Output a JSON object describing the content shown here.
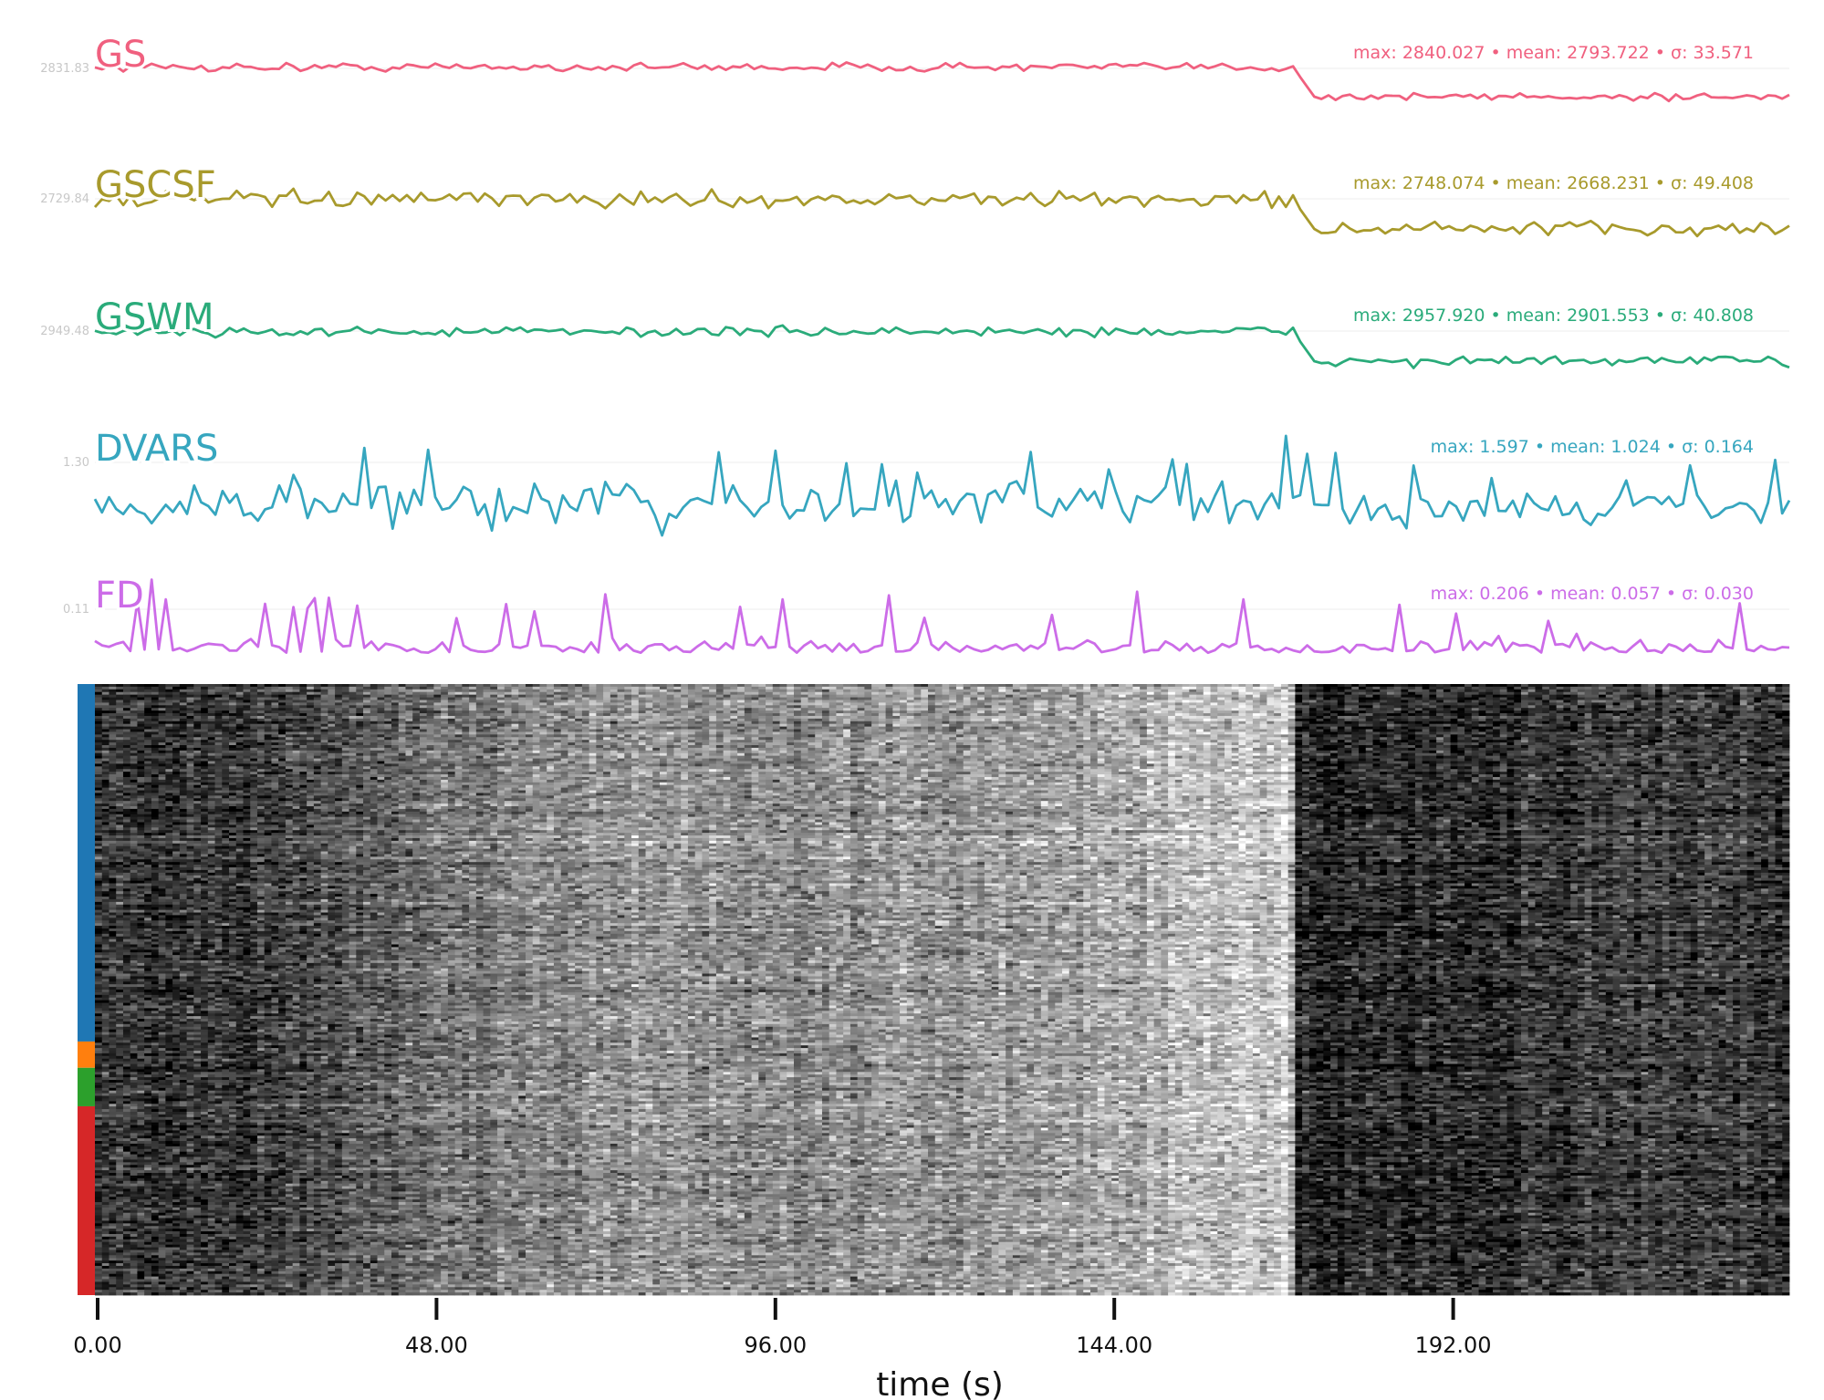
{
  "chart_data": {
    "type": "line",
    "xlabel": "time (s)",
    "x_ticks": [
      "0.00",
      "48.00",
      "96.00",
      "144.00",
      "192.00"
    ],
    "x_tick_values": [
      0,
      48,
      96,
      144,
      192
    ],
    "xlim": [
      0,
      240
    ],
    "n_timepoints": 240,
    "series": [
      {
        "name": "GS",
        "color": "#f0607f",
        "stats": "max: 2840.027 • mean: 2793.722 • σ: 33.571",
        "max": 2840.027,
        "mean": 2793.722,
        "sigma": 33.571,
        "ytick_label": "2831.83",
        "profile": "flat_with_drop",
        "noise": 0.08
      },
      {
        "name": "GSCSF",
        "color": "#a89a2c",
        "stats": "max: 2748.074 • mean: 2668.231 • σ: 49.408",
        "max": 2748.074,
        "mean": 2668.231,
        "sigma": 49.408,
        "ytick_label": "2729.84",
        "profile": "flat_with_drop",
        "noise": 0.14
      },
      {
        "name": "GSWM",
        "color": "#2aab7a",
        "stats": "max: 2957.920 • mean: 2901.553 • σ: 40.808",
        "max": 2957.92,
        "mean": 2901.553,
        "sigma": 40.808,
        "ytick_label": "2949.48",
        "profile": "flat_with_drop",
        "noise": 0.09
      },
      {
        "name": "DVARS",
        "color": "#36a6bf",
        "stats": "max: 1.597 • mean: 1.024 • σ: 0.164",
        "max": 1.597,
        "mean": 1.024,
        "sigma": 0.164,
        "ytick_label": "1.30",
        "profile": "noisy",
        "noise": 1.0
      },
      {
        "name": "FD",
        "color": "#cc6ce8",
        "stats": "max: 0.206 • mean: 0.057 • σ: 0.030",
        "max": 0.206,
        "mean": 0.057,
        "sigma": 0.03,
        "ytick_label": "0.11",
        "profile": "spiky",
        "noise": 1.0
      }
    ],
    "carpet": {
      "segments": [
        {
          "color": "#1f77b4",
          "fraction": 0.585
        },
        {
          "color": "#ff7f0e",
          "fraction": 0.043
        },
        {
          "color": "#2ca02c",
          "fraction": 0.063
        },
        {
          "color": "#d62728",
          "fraction": 0.309
        }
      ],
      "rows": 230,
      "brightness_profile": [
        [
          0,
          0.2
        ],
        [
          25,
          0.24
        ],
        [
          40,
          0.4
        ],
        [
          60,
          0.52
        ],
        [
          80,
          0.58
        ],
        [
          100,
          0.55
        ],
        [
          120,
          0.58
        ],
        [
          140,
          0.66
        ],
        [
          160,
          0.74
        ],
        [
          169,
          0.78
        ],
        [
          170,
          0.16
        ],
        [
          190,
          0.19
        ],
        [
          215,
          0.24
        ],
        [
          240,
          0.22
        ]
      ]
    }
  }
}
